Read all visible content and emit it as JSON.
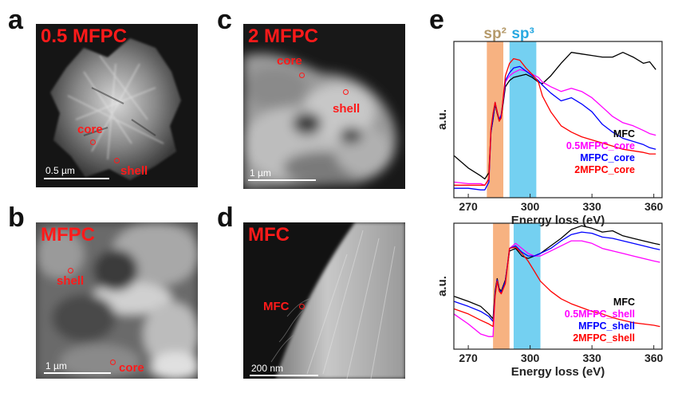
{
  "panels": {
    "a": {
      "letter": "a",
      "title": "0.5 MFPC",
      "core": "core",
      "shell": "shell",
      "scale": "0.5 µm"
    },
    "b": {
      "letter": "b",
      "title": "MFPC",
      "core": "core",
      "shell": "shell",
      "scale": "1 µm"
    },
    "c": {
      "letter": "c",
      "title": "2 MFPC",
      "core": "core",
      "shell": "shell",
      "scale": "1 µm"
    },
    "d": {
      "letter": "d",
      "title": "MFC",
      "marker_label": "MFC",
      "scale": "200 nm"
    },
    "e": {
      "letter": "e"
    }
  },
  "chart_data": [
    {
      "type": "line",
      "title": "",
      "xlabel": "Energy loss (eV)",
      "ylabel": "a.u.",
      "xlim": [
        263,
        364
      ],
      "ylim": [
        0,
        1
      ],
      "xticks": [
        270,
        300,
        330,
        360
      ],
      "xticklabels": [
        "270",
        "300",
        "330",
        "360"
      ],
      "bands": [
        {
          "label": "sp²",
          "x": [
            279,
            287
          ],
          "color": "#f6a46b",
          "label_color": "#b59a6b"
        },
        {
          "label": "sp³",
          "x": [
            290,
            303
          ],
          "color": "#5cc8ee",
          "label_color": "#29a9e1"
        }
      ],
      "legend_position": "bottom-right",
      "series": [
        {
          "name": "MFC",
          "color": "#000000",
          "x": [
            263,
            270,
            276,
            278,
            280,
            281,
            282,
            283,
            284,
            285,
            286,
            287,
            288,
            290,
            292,
            295,
            298,
            301,
            304,
            306,
            310,
            315,
            320,
            325,
            330,
            335,
            340,
            345,
            350,
            355,
            358,
            361
          ],
          "y": [
            0.27,
            0.19,
            0.14,
            0.12,
            0.16,
            0.42,
            0.5,
            0.6,
            0.54,
            0.49,
            0.52,
            0.61,
            0.71,
            0.75,
            0.77,
            0.78,
            0.79,
            0.77,
            0.74,
            0.73,
            0.78,
            0.86,
            0.93,
            0.92,
            0.91,
            0.9,
            0.9,
            0.93,
            0.9,
            0.86,
            0.87,
            0.82
          ]
        },
        {
          "name": "0.5MFPC_core",
          "color": "#ff00ff",
          "x": [
            263,
            270,
            276,
            278,
            280,
            281,
            282,
            283,
            284,
            285,
            286,
            287,
            288,
            290,
            292,
            295,
            298,
            301,
            304,
            306,
            310,
            315,
            320,
            325,
            330,
            335,
            340,
            345,
            350,
            355,
            358,
            361
          ],
          "y": [
            0.1,
            0.09,
            0.09,
            0.08,
            0.12,
            0.43,
            0.52,
            0.61,
            0.55,
            0.5,
            0.53,
            0.63,
            0.74,
            0.78,
            0.8,
            0.82,
            0.81,
            0.79,
            0.77,
            0.74,
            0.71,
            0.68,
            0.7,
            0.68,
            0.64,
            0.58,
            0.52,
            0.48,
            0.46,
            0.43,
            0.41,
            0.4
          ]
        },
        {
          "name": "MFPC_core",
          "color": "#0000ff",
          "x": [
            263,
            270,
            276,
            278,
            280,
            281,
            282,
            283,
            284,
            285,
            286,
            287,
            288,
            290,
            292,
            295,
            298,
            301,
            304,
            306,
            310,
            315,
            320,
            325,
            330,
            335,
            340,
            345,
            350,
            355,
            358,
            361
          ],
          "y": [
            0.06,
            0.06,
            0.05,
            0.05,
            0.1,
            0.42,
            0.51,
            0.61,
            0.55,
            0.5,
            0.53,
            0.64,
            0.75,
            0.8,
            0.83,
            0.84,
            0.81,
            0.78,
            0.75,
            0.72,
            0.67,
            0.62,
            0.64,
            0.6,
            0.55,
            0.47,
            0.42,
            0.38,
            0.36,
            0.34,
            0.32,
            0.31
          ]
        },
        {
          "name": "2MFPC_core",
          "color": "#ff0000",
          "x": [
            263,
            270,
            276,
            278,
            280,
            281,
            282,
            283,
            284,
            285,
            286,
            287,
            288,
            290,
            292,
            295,
            298,
            301,
            304,
            306,
            310,
            315,
            320,
            325,
            330,
            335,
            340,
            345,
            350,
            355,
            358,
            361
          ],
          "y": [
            0.08,
            0.08,
            0.08,
            0.08,
            0.12,
            0.44,
            0.54,
            0.61,
            0.55,
            0.49,
            0.51,
            0.65,
            0.78,
            0.86,
            0.89,
            0.88,
            0.83,
            0.79,
            0.74,
            0.65,
            0.55,
            0.46,
            0.42,
            0.39,
            0.37,
            0.35,
            0.33,
            0.31,
            0.3,
            0.29,
            0.28,
            0.28
          ]
        }
      ]
    },
    {
      "type": "line",
      "title": "",
      "xlabel": "Energy loss (eV)",
      "ylabel": "a.u.",
      "xlim": [
        263,
        364
      ],
      "ylim": [
        0,
        1
      ],
      "xticks": [
        270,
        300,
        330,
        360
      ],
      "xticklabels": [
        "270",
        "300",
        "330",
        "360"
      ],
      "bands": [
        {
          "x": [
            282,
            290
          ],
          "color": "#f6a46b"
        },
        {
          "x": [
            292,
            305
          ],
          "color": "#5cc8ee"
        }
      ],
      "legend_position": "bottom-right",
      "series": [
        {
          "name": "MFC",
          "color": "#000000",
          "x": [
            263,
            270,
            276,
            280,
            282,
            283,
            284,
            285,
            286,
            288,
            290,
            293,
            296,
            299,
            302,
            305,
            310,
            315,
            320,
            325,
            330,
            335,
            340,
            345,
            350,
            355,
            360,
            363
          ],
          "y": [
            0.42,
            0.38,
            0.34,
            0.28,
            0.24,
            0.46,
            0.56,
            0.48,
            0.46,
            0.55,
            0.78,
            0.8,
            0.74,
            0.72,
            0.74,
            0.76,
            0.82,
            0.88,
            0.95,
            0.98,
            0.96,
            0.93,
            0.94,
            0.9,
            0.88,
            0.86,
            0.84,
            0.83
          ]
        },
        {
          "name": "0.5MFPC_shell",
          "color": "#ff00ff",
          "x": [
            263,
            270,
            276,
            280,
            282,
            283,
            284,
            285,
            286,
            288,
            290,
            293,
            296,
            299,
            302,
            305,
            310,
            315,
            320,
            325,
            330,
            335,
            340,
            345,
            350,
            355,
            360,
            363
          ],
          "y": [
            0.28,
            0.2,
            0.12,
            0.1,
            0.1,
            0.43,
            0.55,
            0.46,
            0.44,
            0.53,
            0.8,
            0.84,
            0.8,
            0.76,
            0.74,
            0.74,
            0.78,
            0.82,
            0.86,
            0.86,
            0.84,
            0.8,
            0.78,
            0.76,
            0.74,
            0.72,
            0.7,
            0.69
          ]
        },
        {
          "name": "MFPC_shell",
          "color": "#0000ff",
          "x": [
            263,
            270,
            276,
            280,
            282,
            283,
            284,
            285,
            286,
            288,
            290,
            293,
            296,
            299,
            302,
            305,
            310,
            315,
            320,
            325,
            330,
            335,
            340,
            345,
            350,
            355,
            360,
            363
          ],
          "y": [
            0.38,
            0.34,
            0.3,
            0.26,
            0.22,
            0.44,
            0.55,
            0.47,
            0.45,
            0.54,
            0.8,
            0.82,
            0.77,
            0.74,
            0.74,
            0.76,
            0.8,
            0.86,
            0.91,
            0.93,
            0.92,
            0.89,
            0.88,
            0.86,
            0.84,
            0.82,
            0.8,
            0.79
          ]
        },
        {
          "name": "2MFPC_shell",
          "color": "#ff0000",
          "x": [
            263,
            270,
            276,
            280,
            282,
            283,
            284,
            285,
            286,
            288,
            290,
            293,
            296,
            299,
            302,
            305,
            310,
            315,
            320,
            325,
            330,
            335,
            340,
            345,
            350,
            355,
            360,
            363
          ],
          "y": [
            0.32,
            0.28,
            0.23,
            0.2,
            0.18,
            0.42,
            0.54,
            0.46,
            0.44,
            0.52,
            0.8,
            0.81,
            0.76,
            0.7,
            0.62,
            0.54,
            0.46,
            0.4,
            0.36,
            0.33,
            0.3,
            0.28,
            0.25,
            0.23,
            0.21,
            0.2,
            0.19,
            0.18
          ]
        }
      ]
    }
  ]
}
